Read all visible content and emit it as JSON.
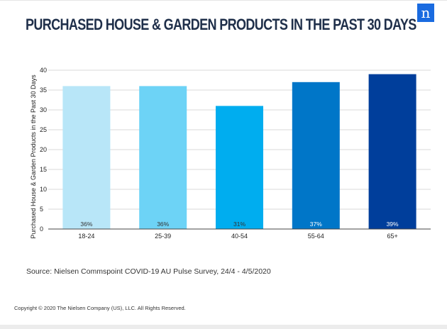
{
  "header": {
    "title": "PURCHASED HOUSE & GARDEN PRODUCTS IN THE PAST 30 DAYS",
    "logo_letter": "n",
    "logo_color": "#1a6be0"
  },
  "chart_data": {
    "type": "bar",
    "title": "PURCHASED HOUSE & GARDEN PRODUCTS IN THE PAST 30 DAYS",
    "xlabel": "",
    "ylabel": "Purchased House & Garden Products in the Past 30 Days",
    "categories": [
      "18-24",
      "25-39",
      "40-54",
      "55-64",
      "65+"
    ],
    "values": [
      36,
      36,
      31,
      37,
      39
    ],
    "data_labels": [
      "36%",
      "36%",
      "31%",
      "37%",
      "39%"
    ],
    "bar_colors": [
      "#b8e6f8",
      "#6dd3f6",
      "#00adef",
      "#0076c8",
      "#003e9b"
    ],
    "label_colors": [
      "#333333",
      "#333333",
      "#333333",
      "#ffffff",
      "#ffffff"
    ],
    "ylim": [
      0,
      40
    ],
    "yticks": [
      0,
      5,
      10,
      15,
      20,
      25,
      30,
      35,
      40
    ],
    "grid": true
  },
  "footer": {
    "source": "Source: Nielsen Commspoint COVID-19 AU Pulse Survey, 24/4 - 4/5/2020",
    "copyright": "Copyright © 2020 The Nielsen Company (US), LLC. All Rights Reserved."
  }
}
